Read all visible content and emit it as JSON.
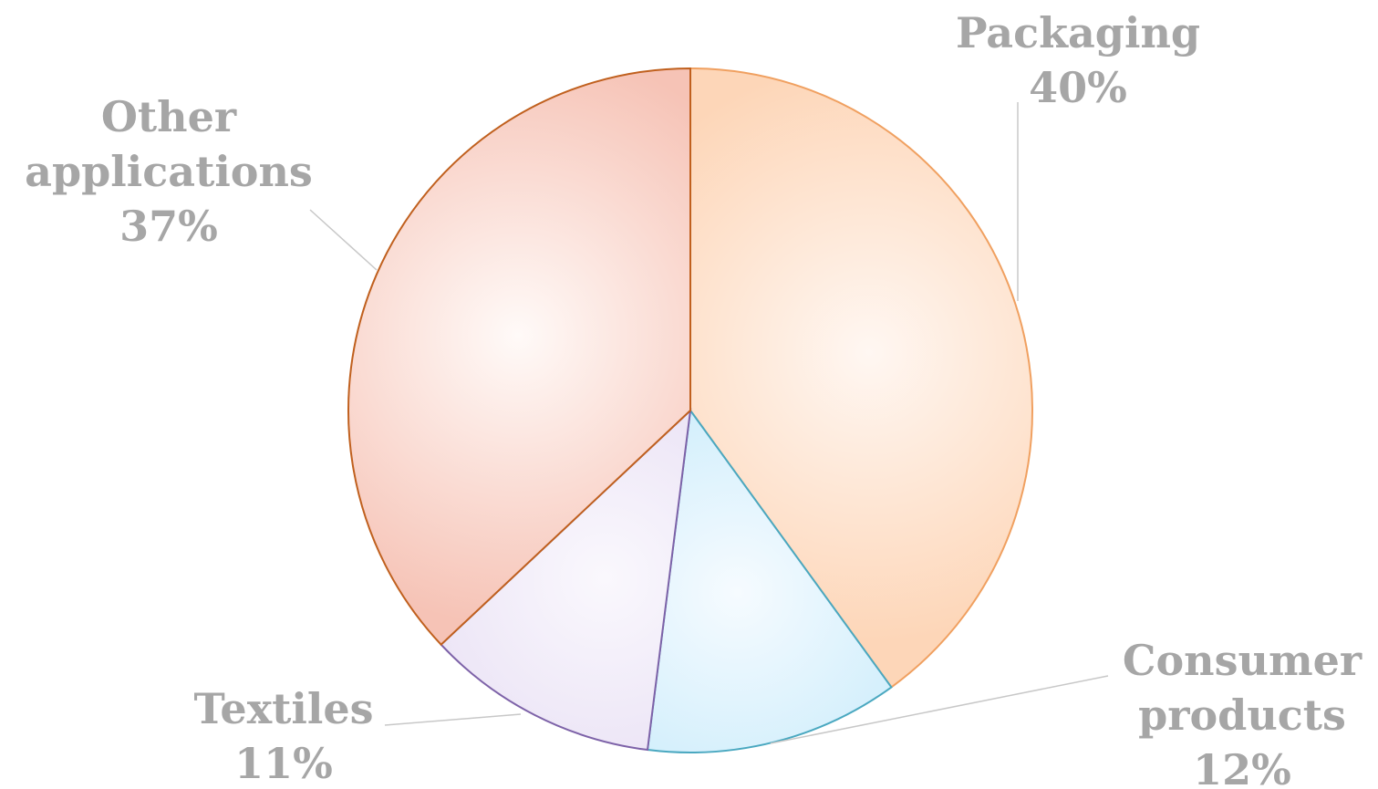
{
  "chart_data": {
    "type": "pie",
    "title": "",
    "start_angle_deg": 0,
    "direction": "clockwise",
    "slices": [
      {
        "name": "Packaging",
        "value": 40,
        "label_lines": [
          "Packaging",
          "40%"
        ],
        "fill_center": "#fff7f2",
        "fill_edge": "#fdd6b8",
        "stroke": "#f0a060",
        "leader": true
      },
      {
        "name": "Consumer products",
        "value": 12,
        "label_lines": [
          "Consumer",
          "products",
          "12%"
        ],
        "fill_center": "#f6fbff",
        "fill_edge": "#bfe8fa",
        "stroke": "#4aa8c0",
        "leader": true
      },
      {
        "name": "Textiles",
        "value": 11,
        "label_lines": [
          "Textiles",
          "11%"
        ],
        "fill_center": "#faf8fd",
        "fill_edge": "#e4daf2",
        "stroke": "#7d62a8",
        "leader": true
      },
      {
        "name": "Other applications",
        "value": 37,
        "label_lines": [
          "Other",
          "applications",
          "37%"
        ],
        "fill_center": "#fffaf8",
        "fill_edge": "#f6c3b6",
        "stroke": "#c0601e",
        "leader": true
      }
    ],
    "legend": "none",
    "label_color": "#a6a6a6"
  }
}
